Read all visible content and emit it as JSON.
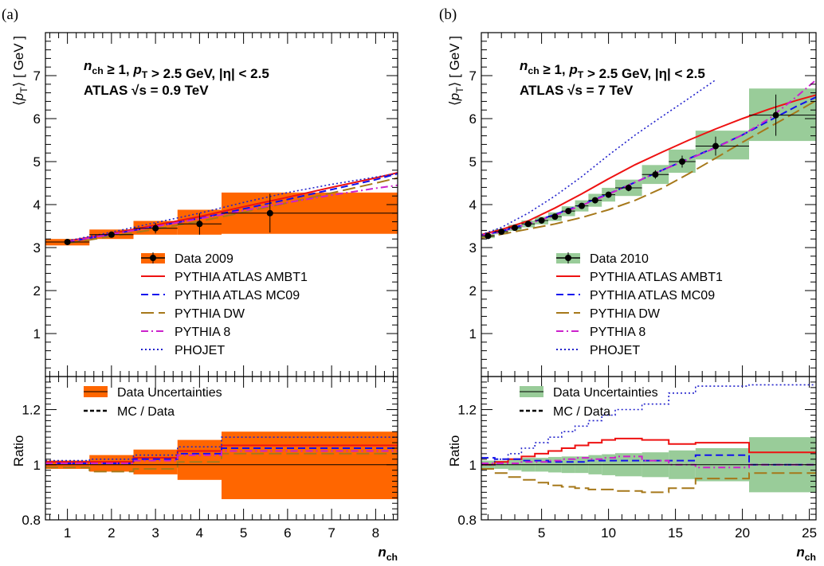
{
  "colors": {
    "data_a": "#ff6600",
    "data_b": "#99cc99",
    "ambt1": "#ee1111",
    "mc09": "#1111ee",
    "dw": "#a6781a",
    "p8": "#cc22cc",
    "phojet": "#2222cc",
    "ratio_line": "#000000"
  },
  "chart_data": [
    {
      "panel_label": "(a)",
      "type": "line",
      "annotation_line1": "n_ch ≥ 1, p_T > 2.5 GeV, |η| < 2.5",
      "annotation_line2": "ATLAS √s = 0.9 TeV",
      "ylabel": "⟨p_T⟩ [ GeV ]",
      "ylim": [
        0,
        8
      ],
      "xlabel": "n_ch",
      "xlim": [
        0.5,
        8.5
      ],
      "xticks": [
        1,
        2,
        3,
        4,
        5,
        6,
        7,
        8
      ],
      "yticks": [
        1,
        2,
        3,
        4,
        5,
        6,
        7
      ],
      "data": {
        "name": "Data 2009",
        "bins": [
          [
            0.5,
            1.5
          ],
          [
            1.5,
            2.5
          ],
          [
            2.5,
            3.5
          ],
          [
            3.5,
            4.5
          ],
          [
            4.5,
            8.5
          ]
        ],
        "x": [
          1,
          2,
          3,
          4,
          5.6
        ],
        "y": [
          3.13,
          3.3,
          3.45,
          3.55,
          3.8
        ],
        "stat_err": [
          0.03,
          0.05,
          0.12,
          0.25,
          0.45
        ],
        "syst_lo": [
          3.05,
          3.2,
          3.3,
          3.3,
          3.32
        ],
        "syst_hi": [
          3.2,
          3.42,
          3.62,
          3.88,
          4.28
        ]
      },
      "models": [
        {
          "key": "ambt1",
          "name": "PYTHIA ATLAS AMBT1",
          "dash": "solid",
          "x": [
            1,
            2,
            3,
            4,
            5,
            6,
            7,
            8,
            8.5
          ],
          "y": [
            3.15,
            3.33,
            3.52,
            3.72,
            3.95,
            4.17,
            4.4,
            4.62,
            4.74
          ]
        },
        {
          "key": "mc09",
          "name": "PYTHIA ATLAS MC09",
          "dash": "dashed",
          "x": [
            1,
            2,
            3,
            4,
            5,
            6,
            7,
            8,
            8.5
          ],
          "y": [
            3.13,
            3.31,
            3.49,
            3.68,
            3.9,
            4.12,
            4.35,
            4.58,
            4.72
          ]
        },
        {
          "key": "dw",
          "name": "PYTHIA DW",
          "dash": "longdash",
          "x": [
            1,
            2,
            3,
            4,
            5,
            6,
            7,
            8,
            8.5
          ],
          "y": [
            3.1,
            3.26,
            3.43,
            3.61,
            3.82,
            4.04,
            4.27,
            4.5,
            4.62
          ]
        },
        {
          "key": "p8",
          "name": "PYTHIA 8",
          "dash": "dashdot",
          "x": [
            1,
            2,
            3,
            4,
            5,
            6,
            7,
            8,
            8.5
          ],
          "y": [
            3.14,
            3.31,
            3.49,
            3.67,
            3.86,
            4.05,
            4.22,
            4.38,
            4.45
          ]
        },
        {
          "key": "phojet",
          "name": "PHOJET",
          "dash": "dotted",
          "x": [
            1,
            2,
            3,
            4,
            5,
            6,
            7,
            8,
            8.5
          ],
          "y": [
            3.16,
            3.36,
            3.58,
            3.8,
            4.05,
            4.28,
            4.47,
            4.64,
            4.72
          ]
        }
      ],
      "ratio": {
        "ylabel": "Ratio",
        "ylim": [
          0.8,
          1.32
        ],
        "yticks": [
          0.8,
          1,
          1.2
        ],
        "yticklabels": [
          "0.8",
          "1",
          "1.2"
        ],
        "legend_band": "Data Uncertainties",
        "legend_line": "MC / Data",
        "band_lo": [
          0.985,
          0.975,
          0.965,
          0.945,
          0.875
        ],
        "band_hi": [
          1.015,
          1.035,
          1.055,
          1.09,
          1.12
        ],
        "model_ratios": [
          {
            "key": "ambt1",
            "values": [
              1.01,
              1.01,
              1.025,
              1.05,
              1.07
            ]
          },
          {
            "key": "mc09",
            "values": [
              1.005,
              1.005,
              1.02,
              1.04,
              1.06
            ]
          },
          {
            "key": "dw",
            "values": [
              0.99,
              0.975,
              0.985,
              1.01,
              1.04
            ]
          },
          {
            "key": "p8",
            "values": [
              1.005,
              1.005,
              1.015,
              1.035,
              1.05
            ]
          },
          {
            "key": "phojet",
            "values": [
              1.015,
              1.02,
              1.035,
              1.065,
              1.1
            ]
          }
        ]
      }
    },
    {
      "panel_label": "(b)",
      "type": "line",
      "annotation_line1": "n_ch ≥ 1, p_T > 2.5 GeV, |η| < 2.5",
      "annotation_line2": "ATLAS √s = 7 TeV",
      "ylabel": "⟨p_T⟩ [ GeV ]",
      "ylim": [
        0,
        8
      ],
      "xlabel": "n_ch",
      "xlim": [
        0.5,
        25.5
      ],
      "xticks": [
        5,
        10,
        15,
        20,
        25
      ],
      "yticks": [
        1,
        2,
        3,
        4,
        5,
        6,
        7
      ],
      "data": {
        "name": "Data 2010",
        "bins": [
          [
            0.5,
            1.5
          ],
          [
            1.5,
            2.5
          ],
          [
            2.5,
            3.5
          ],
          [
            3.5,
            4.5
          ],
          [
            4.5,
            5.5
          ],
          [
            5.5,
            6.5
          ],
          [
            6.5,
            7.5
          ],
          [
            7.5,
            8.5
          ],
          [
            8.5,
            9.5
          ],
          [
            9.5,
            10.5
          ],
          [
            10.5,
            12.5
          ],
          [
            12.5,
            14.5
          ],
          [
            14.5,
            16.5
          ],
          [
            16.5,
            20.5
          ],
          [
            20.5,
            25.5
          ]
        ],
        "x": [
          1,
          2,
          3,
          4,
          5,
          6,
          7,
          8,
          9,
          10,
          11.5,
          13.5,
          15.5,
          18,
          22.5
        ],
        "y": [
          3.27,
          3.37,
          3.46,
          3.55,
          3.63,
          3.72,
          3.85,
          3.97,
          4.1,
          4.23,
          4.39,
          4.7,
          5.0,
          5.36,
          6.08
        ],
        "stat_err": [
          0.02,
          0.02,
          0.02,
          0.03,
          0.03,
          0.03,
          0.04,
          0.05,
          0.06,
          0.07,
          0.08,
          0.1,
          0.14,
          0.22,
          0.48
        ],
        "syst_lo": [
          3.22,
          3.31,
          3.39,
          3.47,
          3.54,
          3.62,
          3.73,
          3.84,
          3.95,
          4.07,
          4.2,
          4.48,
          4.74,
          5.05,
          5.48
        ],
        "syst_hi": [
          3.32,
          3.43,
          3.53,
          3.63,
          3.72,
          3.82,
          3.96,
          4.1,
          4.25,
          4.39,
          4.58,
          4.92,
          5.28,
          5.72,
          6.7
        ]
      },
      "models": [
        {
          "key": "ambt1",
          "name": "PYTHIA ATLAS AMBT1",
          "dash": "solid",
          "x": [
            0.5,
            2,
            4,
            6,
            8,
            10,
            12,
            14,
            16,
            18,
            20,
            22,
            24,
            25.5
          ],
          "y": [
            3.3,
            3.42,
            3.62,
            3.92,
            4.25,
            4.6,
            4.93,
            5.22,
            5.5,
            5.76,
            6.0,
            6.22,
            6.42,
            6.55
          ]
        },
        {
          "key": "mc09",
          "name": "PYTHIA ATLAS MC09",
          "dash": "dashed",
          "x": [
            0.5,
            2,
            4,
            6,
            8,
            10,
            12,
            14,
            16,
            18,
            20,
            22,
            24,
            25.5
          ],
          "y": [
            3.28,
            3.38,
            3.56,
            3.77,
            4.0,
            4.25,
            4.52,
            4.8,
            5.07,
            5.33,
            5.62,
            5.95,
            6.28,
            6.5
          ]
        },
        {
          "key": "dw",
          "name": "PYTHIA DW",
          "dash": "longdash",
          "x": [
            0.5,
            2,
            4,
            6,
            8,
            10,
            12,
            14,
            16,
            18,
            20,
            22,
            24,
            25.5
          ],
          "y": [
            3.22,
            3.31,
            3.43,
            3.55,
            3.7,
            3.88,
            4.1,
            4.38,
            4.72,
            5.08,
            5.45,
            5.8,
            6.15,
            6.42
          ]
        },
        {
          "key": "p8",
          "name": "PYTHIA 8",
          "dash": "dashdot",
          "x": [
            0.5,
            2,
            4,
            6,
            8,
            10,
            12,
            14,
            16,
            18,
            20,
            22,
            24,
            25.5
          ],
          "y": [
            3.28,
            3.37,
            3.55,
            3.75,
            3.98,
            4.24,
            4.52,
            4.8,
            5.06,
            5.32,
            5.62,
            6.0,
            6.5,
            6.9
          ]
        },
        {
          "key": "phojet",
          "name": "PHOJET",
          "dash": "dotted",
          "x": [
            0.5,
            2,
            4,
            6,
            8,
            10,
            12,
            14,
            16,
            18
          ],
          "y": [
            3.3,
            3.47,
            3.8,
            4.2,
            4.65,
            5.15,
            5.62,
            6.05,
            6.47,
            6.9
          ]
        }
      ],
      "ratio": {
        "ylabel": "Ratio",
        "ylim": [
          0.8,
          1.32
        ],
        "yticks": [
          0.8,
          1,
          1.2
        ],
        "yticklabels": [
          "0.8",
          "1",
          "1.2"
        ],
        "legend_band": "Data Uncertainties",
        "legend_line": "MC / Data",
        "band_lo": [
          0.985,
          0.985,
          0.98,
          0.975,
          0.975,
          0.972,
          0.97,
          0.97,
          0.965,
          0.962,
          0.958,
          0.955,
          0.948,
          0.94,
          0.9
        ],
        "band_hi": [
          1.015,
          1.015,
          1.02,
          1.025,
          1.025,
          1.028,
          1.03,
          1.03,
          1.035,
          1.038,
          1.042,
          1.045,
          1.052,
          1.06,
          1.1
        ],
        "model_ratios": [
          {
            "key": "ambt1",
            "values": [
              1.0,
              1.01,
              1.02,
              1.03,
              1.04,
              1.05,
              1.06,
              1.07,
              1.08,
              1.09,
              1.095,
              1.09,
              1.075,
              1.08,
              1.045
            ]
          },
          {
            "key": "mc09",
            "values": [
              1.025,
              1.02,
              1.02,
              1.015,
              1.015,
              1.01,
              1.01,
              1.01,
              1.015,
              1.015,
              1.015,
              1.015,
              1.015,
              1.035,
              1.0
            ]
          },
          {
            "key": "dw",
            "values": [
              0.985,
              0.97,
              0.955,
              0.945,
              0.935,
              0.925,
              0.92,
              0.915,
              0.91,
              0.91,
              0.905,
              0.9,
              0.915,
              0.95,
              0.97
            ]
          },
          {
            "key": "p8",
            "values": [
              1.005,
              1.005,
              1.005,
              1.01,
              1.01,
              1.015,
              1.02,
              1.025,
              1.02,
              1.025,
              1.03,
              1.015,
              1.0,
              0.99,
              1.0
            ]
          },
          {
            "key": "phojet",
            "values": [
              1.0,
              1.02,
              1.04,
              1.06,
              1.08,
              1.1,
              1.12,
              1.14,
              1.16,
              1.18,
              1.2,
              1.22,
              1.26,
              1.285,
              1.29
            ]
          }
        ]
      }
    }
  ]
}
